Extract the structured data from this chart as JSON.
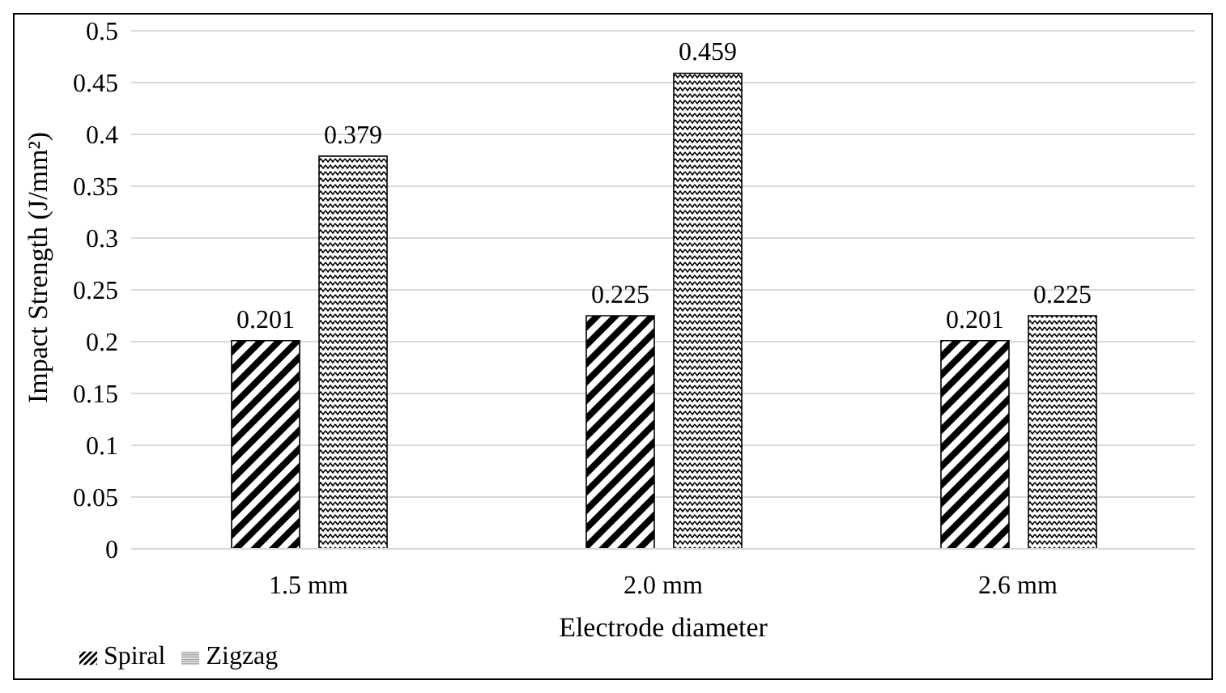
{
  "chart_data": {
    "type": "bar",
    "xlabel": "Electrode diameter",
    "ylabel": "Impact Strength (J/mm²)",
    "categories": [
      "1.5 mm",
      "2.0 mm",
      "2.6 mm"
    ],
    "series": [
      {
        "name": "Spiral",
        "color": "#000000",
        "values": [
          0.201,
          0.225,
          0.201
        ]
      },
      {
        "name": "Zigzag",
        "color": "#000000",
        "values": [
          0.379,
          0.459,
          0.225
        ]
      }
    ],
    "ylim": [
      0,
      0.5
    ],
    "yticks": [
      0,
      0.05,
      0.1,
      0.15,
      0.2,
      0.25,
      0.3,
      0.35,
      0.4,
      0.45,
      0.5
    ],
    "grid": "y",
    "legend": "bottom left",
    "data_labels": true
  }
}
